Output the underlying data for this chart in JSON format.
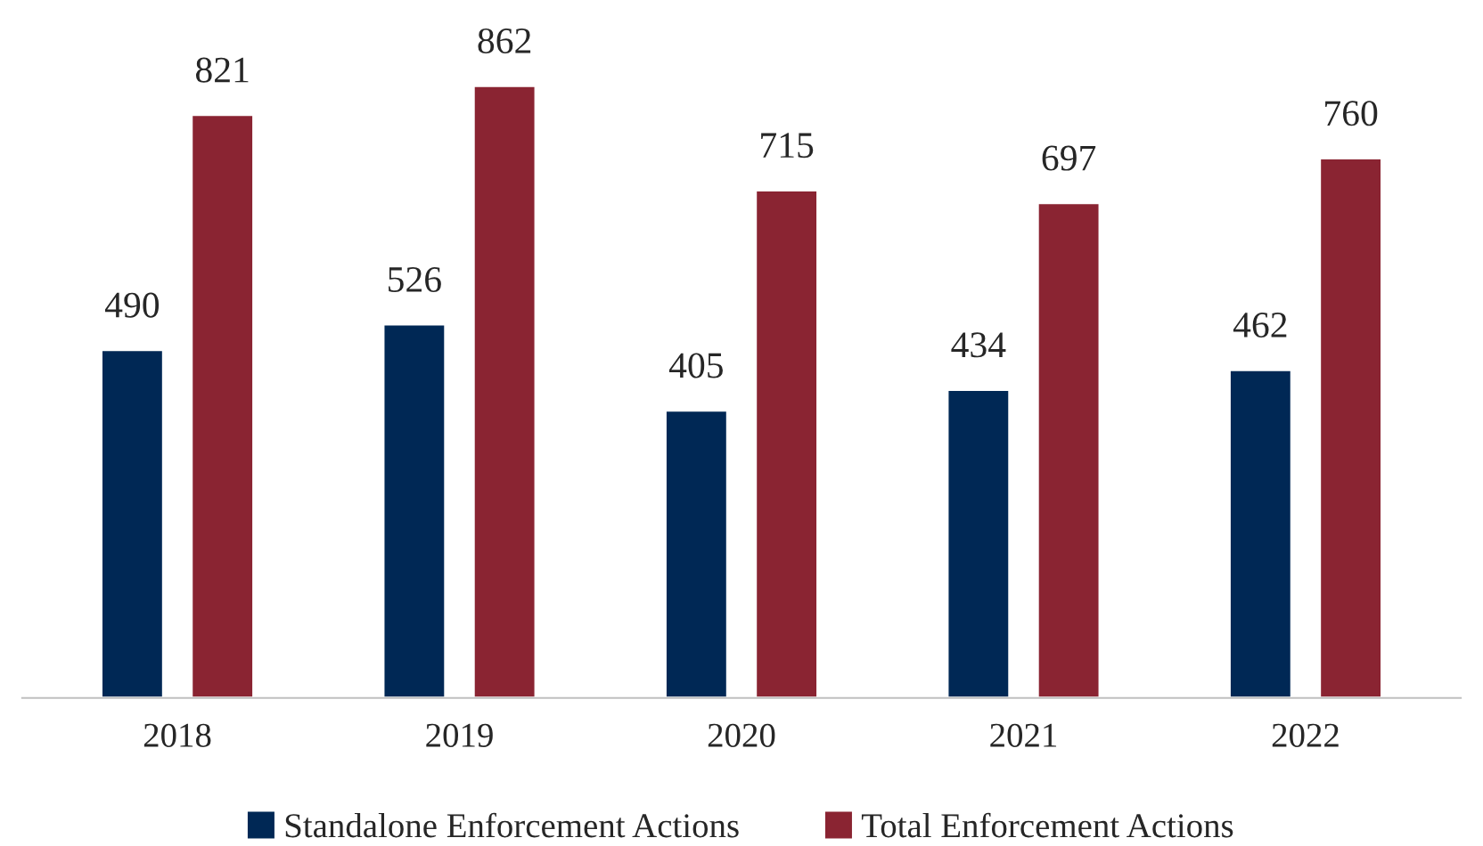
{
  "chart_data": {
    "type": "bar",
    "categories": [
      "2018",
      "2019",
      "2020",
      "2021",
      "2022"
    ],
    "series": [
      {
        "name": "Standalone Enforcement Actions",
        "color": "#002855",
        "values": [
          490,
          526,
          405,
          434,
          462
        ]
      },
      {
        "name": "Total Enforcement Actions",
        "color": "#8a2432",
        "values": [
          821,
          862,
          715,
          697,
          760
        ]
      }
    ],
    "data_labels": true,
    "legend": "bottom",
    "grid": false,
    "tick_labels": "x"
  }
}
